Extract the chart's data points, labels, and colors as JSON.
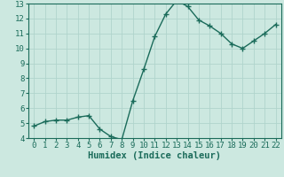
{
  "x": [
    0,
    1,
    2,
    3,
    4,
    5,
    6,
    7,
    8,
    9,
    10,
    11,
    12,
    13,
    14,
    15,
    16,
    17,
    18,
    19,
    20,
    21,
    22
  ],
  "y": [
    4.8,
    5.1,
    5.2,
    5.2,
    5.4,
    5.5,
    4.6,
    4.1,
    3.9,
    6.5,
    8.6,
    10.8,
    12.3,
    13.2,
    12.8,
    11.9,
    11.5,
    11.0,
    10.3,
    10.0,
    10.5,
    11.0,
    11.6
  ],
  "line_color": "#1a6b5a",
  "marker": "+",
  "marker_size": 4,
  "bg_color": "#cce8e0",
  "grid_color": "#b0d4cc",
  "xlabel": "Humidex (Indice chaleur)",
  "xlim": [
    -0.5,
    22.5
  ],
  "ylim": [
    4,
    13
  ],
  "xticks": [
    0,
    1,
    2,
    3,
    4,
    5,
    6,
    7,
    8,
    9,
    10,
    11,
    12,
    13,
    14,
    15,
    16,
    17,
    18,
    19,
    20,
    21,
    22
  ],
  "yticks": [
    4,
    5,
    6,
    7,
    8,
    9,
    10,
    11,
    12,
    13
  ],
  "tick_fontsize": 6.5,
  "xlabel_fontsize": 7.5,
  "line_width": 1.0
}
